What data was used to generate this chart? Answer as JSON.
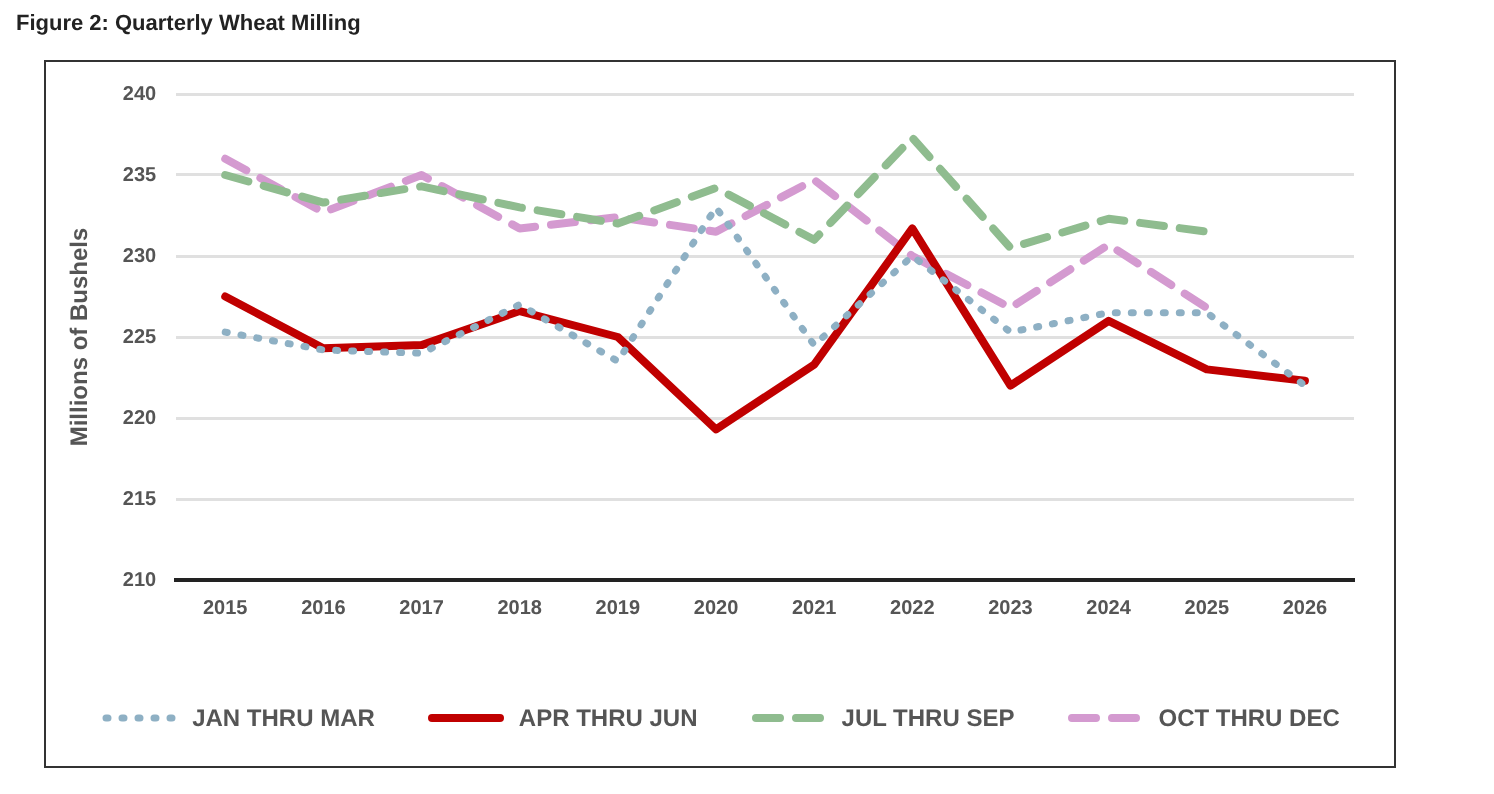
{
  "chart_data": {
    "type": "line",
    "title": "Figure 2: Quarterly Wheat Milling",
    "ylabel": "Millions of Bushels",
    "categories": [
      "2015",
      "2016",
      "2017",
      "2018",
      "2019",
      "2020",
      "2021",
      "2022",
      "2023",
      "2024",
      "2025",
      "2026"
    ],
    "series": [
      {
        "name": "JAN THRU MAR",
        "color": "#8eb0c4",
        "line_style": "dotted",
        "values": [
          225.3,
          224.2,
          224.0,
          227.0,
          223.5,
          233.0,
          224.5,
          230.0,
          225.3,
          226.5,
          226.5,
          222.0
        ]
      },
      {
        "name": "APR THRU JUN",
        "color": "#c00000",
        "line_style": "solid",
        "values": [
          227.5,
          224.3,
          224.5,
          226.6,
          225.0,
          219.3,
          223.3,
          231.7,
          222.0,
          226.0,
          223.0,
          222.3
        ]
      },
      {
        "name": "JUL THRU SEP",
        "color": "#8fbc8f",
        "line_style": "dashed",
        "values": [
          235.0,
          233.3,
          234.3,
          233.0,
          232.0,
          234.2,
          231.0,
          237.3,
          230.5,
          232.3,
          231.5,
          null
        ]
      },
      {
        "name": "OCT THRU DEC",
        "color": "#d49ad0",
        "line_style": "dashed",
        "values": [
          236.0,
          232.7,
          235.0,
          231.7,
          232.4,
          231.5,
          234.7,
          230.0,
          226.8,
          230.7,
          226.8,
          null
        ]
      }
    ],
    "ylim": [
      210,
      240
    ],
    "yticks": [
      210,
      215,
      220,
      225,
      230,
      235,
      240
    ],
    "grid": "y",
    "legend": "bottom",
    "marker": "none"
  }
}
